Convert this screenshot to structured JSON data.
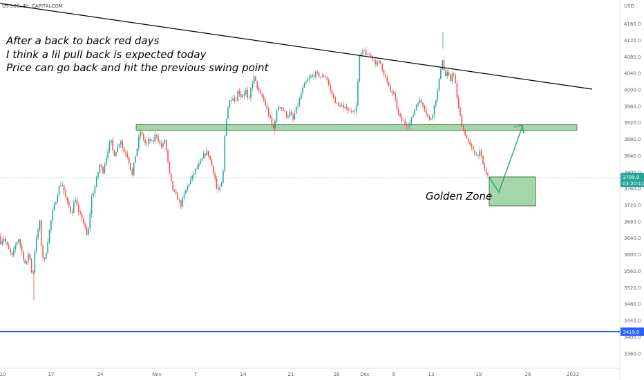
{
  "header": {
    "symbol": "US 500, 4h, CAPITALCOM"
  },
  "price_axis": {
    "currency": "USD",
    "ticks": [
      "4160.0",
      "4120.0",
      "4080.0",
      "4040.0",
      "4000.0",
      "3960.0",
      "3920.0",
      "3880.0",
      "3840.0",
      "3800.0",
      "3760.0",
      "3720.0",
      "3680.0",
      "3640.0",
      "3600.0",
      "3560.0",
      "3520.0",
      "3480.0",
      "3440.0",
      "3400.0",
      "3360.0"
    ],
    "last_price": "3789.9",
    "countdown": "03:20:11",
    "level_tag": "3419.0"
  },
  "time_axis": {
    "ticks": [
      "10",
      "17",
      "24",
      "Nov",
      "7",
      "14",
      "21",
      "28",
      "Dec",
      "6",
      "13",
      "19",
      "26",
      "2023"
    ]
  },
  "annotations": {
    "lines": [
      "After a back to back red days",
      "I think a lil pull back is expected today",
      "Price can go back and hit the previous swing point"
    ],
    "golden_zone": "Golden Zone"
  },
  "colors": {
    "up": "#26a69a",
    "down": "#ef5350",
    "zone_fill": "#a5d6a7",
    "zone_border": "#1b5e20",
    "arrow": "#2e9d6f",
    "trendline": "#000000",
    "support_line": "#2962ff",
    "last_price_tag": "#26a69a",
    "level_tag": "#2962ff"
  },
  "chart_data": {
    "type": "candlestick",
    "symbol": "US 500",
    "interval": "4h",
    "ylim": [
      3330,
      4210
    ],
    "path": [
      [
        0,
        3645
      ],
      [
        3,
        3630
      ],
      [
        8,
        3640
      ],
      [
        14,
        3615
      ],
      [
        20,
        3595
      ],
      [
        24,
        3620
      ],
      [
        29,
        3640
      ],
      [
        35,
        3600
      ],
      [
        40,
        3570
      ],
      [
        44,
        3610
      ],
      [
        48,
        3560
      ],
      [
        49,
        3495
      ],
      [
        51,
        3590
      ],
      [
        56,
        3650
      ],
      [
        60,
        3680
      ],
      [
        63,
        3600
      ],
      [
        67,
        3585
      ],
      [
        72,
        3640
      ],
      [
        78,
        3700
      ],
      [
        83,
        3730
      ],
      [
        87,
        3760
      ],
      [
        92,
        3775
      ],
      [
        97,
        3740
      ],
      [
        101,
        3720
      ],
      [
        106,
        3700
      ],
      [
        111,
        3740
      ],
      [
        116,
        3700
      ],
      [
        121,
        3690
      ],
      [
        125,
        3665
      ],
      [
        129,
        3640
      ],
      [
        132,
        3690
      ],
      [
        135,
        3740
      ],
      [
        139,
        3760
      ],
      [
        143,
        3790
      ],
      [
        147,
        3820
      ],
      [
        151,
        3800
      ],
      [
        155,
        3830
      ],
      [
        159,
        3860
      ],
      [
        163,
        3875
      ],
      [
        167,
        3840
      ],
      [
        172,
        3860
      ],
      [
        177,
        3880
      ],
      [
        181,
        3850
      ],
      [
        186,
        3845
      ],
      [
        190,
        3820
      ],
      [
        194,
        3790
      ],
      [
        197,
        3830
      ],
      [
        201,
        3860
      ],
      [
        205,
        3900
      ],
      [
        209,
        3885
      ],
      [
        214,
        3865
      ],
      [
        218,
        3880
      ],
      [
        223,
        3870
      ],
      [
        228,
        3895
      ],
      [
        233,
        3870
      ],
      [
        237,
        3860
      ],
      [
        241,
        3880
      ],
      [
        244,
        3840
      ],
      [
        248,
        3790
      ],
      [
        252,
        3760
      ],
      [
        256,
        3745
      ],
      [
        260,
        3735
      ],
      [
        264,
        3720
      ],
      [
        268,
        3740
      ],
      [
        272,
        3760
      ],
      [
        276,
        3775
      ],
      [
        281,
        3790
      ],
      [
        285,
        3805
      ],
      [
        289,
        3815
      ],
      [
        293,
        3825
      ],
      [
        297,
        3840
      ],
      [
        301,
        3850
      ],
      [
        305,
        3840
      ],
      [
        309,
        3815
      ],
      [
        313,
        3790
      ],
      [
        316,
        3760
      ],
      [
        319,
        3755
      ],
      [
        322,
        3765
      ],
      [
        325,
        3790
      ],
      [
        328,
        3900
      ],
      [
        331,
        3950
      ],
      [
        335,
        3975
      ],
      [
        339,
        3985
      ],
      [
        343,
        3970
      ],
      [
        347,
        4000
      ],
      [
        351,
        3985
      ],
      [
        355,
        3990
      ],
      [
        358,
        4000
      ],
      [
        362,
        3965
      ],
      [
        366,
        4010
      ],
      [
        370,
        4030
      ],
      [
        374,
        4010
      ],
      [
        378,
        3990
      ],
      [
        383,
        3980
      ],
      [
        387,
        3960
      ],
      [
        391,
        3940
      ],
      [
        395,
        3920
      ],
      [
        398,
        3905
      ],
      [
        402,
        3940
      ],
      [
        406,
        3965
      ],
      [
        410,
        3955
      ],
      [
        414,
        3945
      ],
      [
        418,
        3935
      ],
      [
        422,
        3945
      ],
      [
        426,
        3925
      ],
      [
        430,
        3950
      ],
      [
        434,
        3965
      ],
      [
        438,
        3990
      ],
      [
        442,
        4010
      ],
      [
        446,
        4020
      ],
      [
        451,
        4030
      ],
      [
        456,
        4035
      ],
      [
        460,
        4040
      ],
      [
        464,
        4035
      ],
      [
        468,
        4030
      ],
      [
        472,
        4035
      ],
      [
        476,
        4025
      ],
      [
        480,
        4000
      ],
      [
        484,
        3985
      ],
      [
        488,
        3970
      ],
      [
        492,
        3960
      ],
      [
        496,
        3965
      ],
      [
        500,
        3950
      ],
      [
        504,
        3960
      ],
      [
        508,
        3945
      ],
      [
        512,
        3955
      ],
      [
        516,
        3945
      ],
      [
        519,
        3975
      ],
      [
        522,
        4075
      ],
      [
        526,
        4090
      ],
      [
        530,
        4095
      ],
      [
        534,
        4080
      ],
      [
        538,
        4085
      ],
      [
        542,
        4075
      ],
      [
        545,
        4070
      ],
      [
        548,
        4060
      ],
      [
        552,
        4070
      ],
      [
        556,
        4050
      ],
      [
        560,
        4030
      ],
      [
        564,
        4010
      ],
      [
        568,
        3995
      ],
      [
        572,
        3990
      ],
      [
        576,
        3960
      ],
      [
        580,
        3935
      ],
      [
        584,
        3925
      ],
      [
        588,
        3920
      ],
      [
        592,
        3915
      ],
      [
        596,
        3920
      ],
      [
        600,
        3940
      ],
      [
        604,
        3960
      ],
      [
        608,
        3975
      ],
      [
        612,
        3970
      ],
      [
        616,
        3960
      ],
      [
        620,
        3940
      ],
      [
        624,
        3925
      ],
      [
        628,
        3940
      ],
      [
        632,
        3970
      ],
      [
        636,
        4000
      ],
      [
        640,
        4050
      ],
      [
        642,
        4080
      ],
      [
        644,
        4060
      ],
      [
        646,
        4030
      ],
      [
        650,
        4040
      ],
      [
        654,
        4020
      ],
      [
        657,
        4045
      ],
      [
        660,
        4030
      ],
      [
        663,
        3990
      ],
      [
        666,
        3955
      ],
      [
        669,
        3930
      ],
      [
        672,
        3905
      ],
      [
        675,
        3895
      ],
      [
        678,
        3880
      ],
      [
        681,
        3870
      ],
      [
        684,
        3860
      ],
      [
        687,
        3855
      ],
      [
        690,
        3845
      ],
      [
        693,
        3840
      ],
      [
        696,
        3850
      ],
      [
        699,
        3835
      ],
      [
        702,
        3815
      ],
      [
        705,
        3800
      ],
      [
        708,
        3790
      ]
    ],
    "price_levels": [
      {
        "label": "horizontal-support",
        "price": 3419.0
      }
    ],
    "zones": [
      {
        "label": "resistance-support-zone",
        "price_from": 3904,
        "price_to": 3912
      },
      {
        "label": "golden-zone",
        "price_from": 3720,
        "price_to": 3790
      }
    ]
  }
}
